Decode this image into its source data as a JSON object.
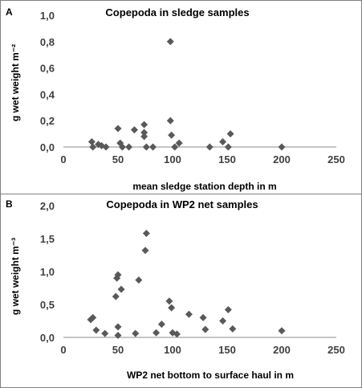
{
  "chart_data": [
    {
      "panel_label": "A",
      "type": "scatter",
      "title": "Copepoda in sledge samples",
      "xlabel": "mean sledge station depth in m",
      "ylabel": "g wet weight m⁻²",
      "xlim": [
        0,
        250
      ],
      "ylim": [
        0,
        1.0
      ],
      "x_ticks": [
        "0",
        "50",
        "100",
        "150",
        "200",
        "250"
      ],
      "y_ticks": [
        "0,0",
        "0,2",
        "0,4",
        "0,6",
        "0,8",
        "1,0"
      ],
      "grid": false,
      "marker_color": "#595959",
      "points": [
        {
          "x": 26,
          "y": 0.04
        },
        {
          "x": 27,
          "y": 0.0
        },
        {
          "x": 32,
          "y": 0.02
        },
        {
          "x": 35,
          "y": 0.01
        },
        {
          "x": 39,
          "y": 0.0
        },
        {
          "x": 50,
          "y": 0.14
        },
        {
          "x": 52,
          "y": 0.03
        },
        {
          "x": 54,
          "y": 0.0
        },
        {
          "x": 60,
          "y": 0.0
        },
        {
          "x": 65,
          "y": 0.13
        },
        {
          "x": 74,
          "y": 0.17
        },
        {
          "x": 74,
          "y": 0.11
        },
        {
          "x": 74,
          "y": 0.08
        },
        {
          "x": 76,
          "y": 0.0
        },
        {
          "x": 82,
          "y": 0.0
        },
        {
          "x": 98,
          "y": 0.8
        },
        {
          "x": 98,
          "y": 0.2
        },
        {
          "x": 99,
          "y": 0.09
        },
        {
          "x": 102,
          "y": 0.0
        },
        {
          "x": 106,
          "y": 0.03
        },
        {
          "x": 134,
          "y": 0.0
        },
        {
          "x": 146,
          "y": 0.04
        },
        {
          "x": 151,
          "y": 0.0
        },
        {
          "x": 153,
          "y": 0.1
        },
        {
          "x": 200,
          "y": 0.0
        }
      ]
    },
    {
      "panel_label": "B",
      "type": "scatter",
      "title": "Copepoda in WP2 net samples",
      "xlabel": "WP2 net bottom to surface haul in m",
      "ylabel": "g wet weight m⁻³",
      "xlim": [
        0,
        250
      ],
      "ylim": [
        0,
        2.0
      ],
      "x_ticks": [
        "0",
        "50",
        "100",
        "150",
        "200",
        "250"
      ],
      "y_ticks": [
        "0,0",
        "0,5",
        "1,0",
        "1,5",
        "2,0"
      ],
      "grid": false,
      "marker_color": "#595959",
      "points": [
        {
          "x": 25,
          "y": 0.27
        },
        {
          "x": 27,
          "y": 0.3
        },
        {
          "x": 30,
          "y": 0.11
        },
        {
          "x": 38,
          "y": 0.06
        },
        {
          "x": 48,
          "y": 0.62
        },
        {
          "x": 49,
          "y": 0.9
        },
        {
          "x": 50,
          "y": 0.95
        },
        {
          "x": 50,
          "y": 0.16
        },
        {
          "x": 50,
          "y": 0.03
        },
        {
          "x": 53,
          "y": 0.73
        },
        {
          "x": 66,
          "y": 0.06
        },
        {
          "x": 69,
          "y": 0.87
        },
        {
          "x": 75,
          "y": 1.32
        },
        {
          "x": 76,
          "y": 1.58
        },
        {
          "x": 85,
          "y": 0.07
        },
        {
          "x": 90,
          "y": 0.2
        },
        {
          "x": 97,
          "y": 0.55
        },
        {
          "x": 99,
          "y": 0.45
        },
        {
          "x": 100,
          "y": 0.07
        },
        {
          "x": 104,
          "y": 0.05
        },
        {
          "x": 115,
          "y": 0.35
        },
        {
          "x": 128,
          "y": 0.3
        },
        {
          "x": 130,
          "y": 0.12
        },
        {
          "x": 146,
          "y": 0.25
        },
        {
          "x": 151,
          "y": 0.42
        },
        {
          "x": 155,
          "y": 0.13
        },
        {
          "x": 200,
          "y": 0.1
        }
      ]
    }
  ]
}
